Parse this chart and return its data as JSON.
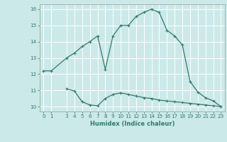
{
  "xlabel": "Humidex (Indice chaleur)",
  "xlim": [
    -0.5,
    23.5
  ],
  "ylim": [
    9.7,
    16.3
  ],
  "yticks": [
    10,
    11,
    12,
    13,
    14,
    15,
    16
  ],
  "xticks": [
    0,
    1,
    3,
    4,
    5,
    6,
    7,
    8,
    9,
    10,
    11,
    12,
    13,
    14,
    15,
    16,
    17,
    18,
    19,
    20,
    21,
    22,
    23
  ],
  "bg_color": "#cbe9e9",
  "grid_color": "#ffffff",
  "line_color": "#2e7b6e",
  "upper_x": [
    0,
    1,
    3,
    4,
    5,
    6,
    7,
    8,
    9,
    10,
    11,
    12,
    13,
    14,
    15,
    16,
    17,
    18,
    19,
    20,
    21,
    22,
    23
  ],
  "upper_y": [
    12.2,
    12.2,
    13.0,
    13.3,
    13.7,
    14.0,
    14.35,
    12.3,
    14.35,
    15.0,
    15.0,
    15.55,
    15.8,
    16.0,
    15.8,
    14.7,
    14.35,
    13.8,
    11.55,
    10.9,
    10.55,
    10.35,
    10.0
  ],
  "lower_x": [
    3,
    4,
    5,
    6,
    7,
    8,
    9,
    10,
    11,
    12,
    13,
    14,
    15,
    16,
    17,
    18,
    19,
    20,
    21,
    22,
    23
  ],
  "lower_y": [
    11.1,
    10.95,
    10.3,
    10.1,
    10.05,
    10.5,
    10.75,
    10.85,
    10.75,
    10.65,
    10.55,
    10.5,
    10.4,
    10.35,
    10.3,
    10.25,
    10.2,
    10.15,
    10.1,
    10.05,
    10.0
  ]
}
